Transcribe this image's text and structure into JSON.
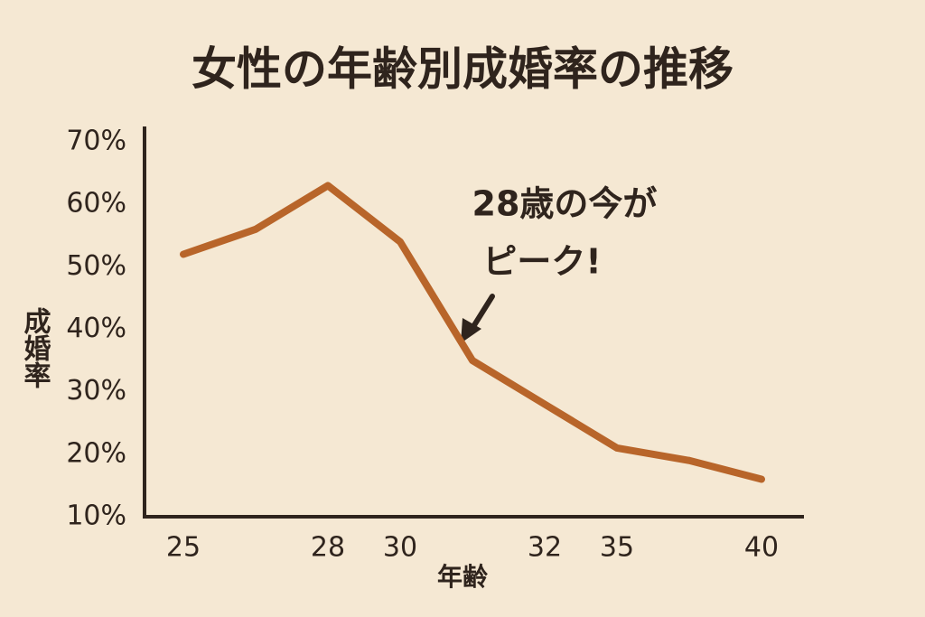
{
  "chart_data": {
    "type": "line",
    "title": "女性の年齢別成婚率の推移",
    "y_label": "成婚率",
    "x_label": "年齢",
    "annotation": [
      "28歳の今が",
      "ピーク!"
    ],
    "categories": [
      "25",
      null,
      "28",
      "30",
      null,
      "32",
      "35",
      null,
      "40"
    ],
    "series": [
      {
        "name": "成婚率",
        "color": "#b8652a",
        "values": [
          52,
          56,
          63,
          54,
          35,
          28,
          21,
          19,
          16
        ]
      }
    ],
    "ylim": [
      10,
      70
    ],
    "yticks": [
      {
        "value": 10,
        "label": "10%"
      },
      {
        "value": 20,
        "label": "20%"
      },
      {
        "value": 30,
        "label": "30%"
      },
      {
        "value": 40,
        "label": "40%"
      },
      {
        "value": 50,
        "label": "50%"
      },
      {
        "value": 60,
        "label": "60%"
      },
      {
        "value": 70,
        "label": "70%"
      }
    ],
    "legend": false,
    "grid": false
  }
}
